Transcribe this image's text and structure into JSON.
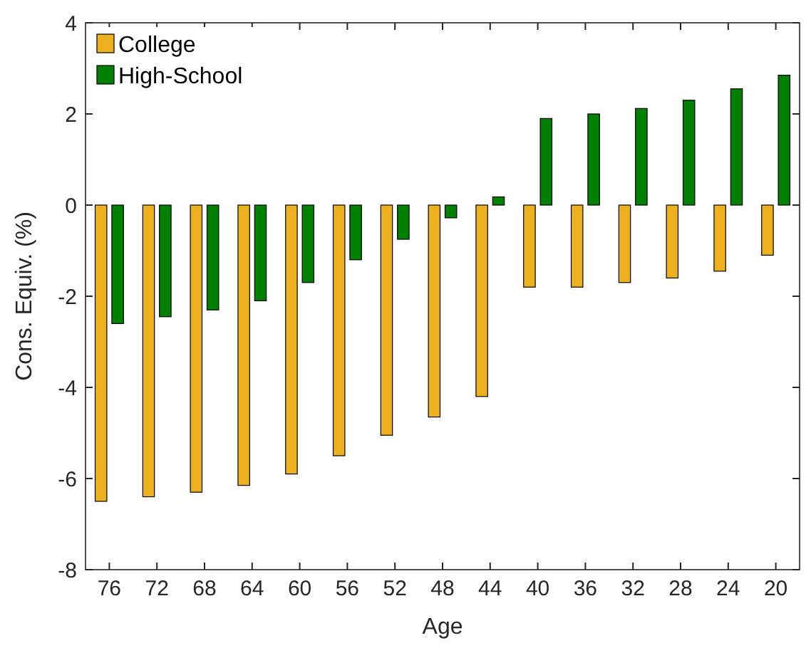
{
  "chart_data": {
    "type": "bar",
    "xlabel": "Age",
    "ylabel": "Cons. Equiv. (%)",
    "categories": [
      "76",
      "72",
      "68",
      "64",
      "60",
      "56",
      "52",
      "48",
      "44",
      "40",
      "36",
      "32",
      "28",
      "24",
      "20"
    ],
    "series": [
      {
        "name": "College",
        "color": "#edb120",
        "values": [
          -6.5,
          -6.4,
          -6.3,
          -6.15,
          -5.9,
          -5.5,
          -5.05,
          -4.65,
          -4.2,
          -1.8,
          -1.8,
          -1.7,
          -1.6,
          -1.45,
          -1.1
        ]
      },
      {
        "name": "High-School",
        "color": "#008000",
        "values": [
          -2.6,
          -2.45,
          -2.3,
          -2.1,
          -1.7,
          -1.2,
          -0.75,
          -0.28,
          0.18,
          1.9,
          2.0,
          2.12,
          2.3,
          2.55,
          2.85
        ]
      }
    ],
    "ylim": [
      -8,
      4
    ],
    "yticks": [
      -8,
      -6,
      -4,
      -2,
      0,
      2,
      4
    ],
    "grid": false,
    "legend": "top left"
  }
}
